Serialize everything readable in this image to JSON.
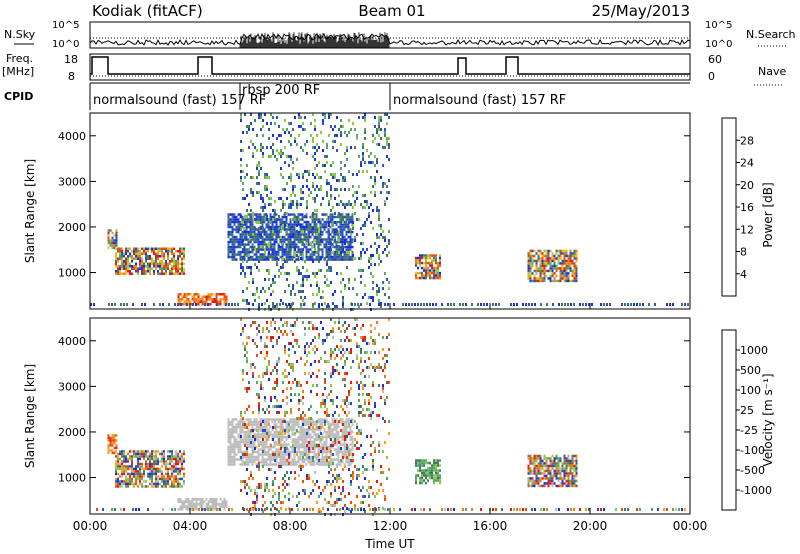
{
  "header": {
    "station": "Kodiak (fitACF)",
    "beam": "Beam 01",
    "date": "25/May/2013"
  },
  "top_panels": {
    "nsky_label": "N.Sky",
    "nsky_ticks": [
      "10^5",
      "10^0"
    ],
    "nsearch_label": "N.Search",
    "nsearch_ticks": [
      "10^5",
      "10^0"
    ],
    "freq_label_1": "Freq.",
    "freq_label_2": "[MHz]",
    "freq_ticks": [
      "18",
      "8"
    ],
    "nave_label": "Nave",
    "nave_ticks": [
      "60",
      "0"
    ],
    "cpid_label": "CPID",
    "cpid_segments": [
      {
        "text": "normalsound (fast) 157 RF"
      },
      {
        "text": "rbsp 200 RF"
      },
      {
        "text": "normalsound (fast) 157 RF"
      }
    ]
  },
  "chart_data": [
    {
      "type": "heatmap",
      "ylabel": "Slant Range [km]",
      "y_ticks": [
        "1000",
        "2000",
        "3000",
        "4000"
      ],
      "ylim": [
        200,
        4500
      ],
      "xlim": [
        "00:00",
        "24:00"
      ],
      "colorbar": {
        "label": "Power [dB]",
        "ticks": [
          "4",
          "8",
          "12",
          "16",
          "20",
          "24",
          "28"
        ],
        "colors": [
          "#1a2fe0",
          "#2d4fbf",
          "#3f7a62",
          "#5aa56a",
          "#8ac84a",
          "#f2c012",
          "#f5a020",
          "#f07a18",
          "#ec4a12",
          "#e81a10"
        ]
      },
      "echo_regions": [
        {
          "t_start": 0.7,
          "t_end": 1.1,
          "r_start": 1550,
          "r_end": 1950,
          "level": "mid"
        },
        {
          "t_start": 1.0,
          "t_end": 3.8,
          "r_start": 1000,
          "r_end": 1550,
          "level": "mixed"
        },
        {
          "t_start": 3.5,
          "t_end": 5.5,
          "r_start": 300,
          "r_end": 550,
          "level": "high"
        },
        {
          "t_start": 5.5,
          "t_end": 10.5,
          "r_start": 1300,
          "r_end": 2300,
          "level": "low"
        },
        {
          "t_start": 6.0,
          "t_end": 12.0,
          "r_start": 200,
          "r_end": 4500,
          "level": "scatter"
        },
        {
          "t_start": 13.0,
          "t_end": 14.0,
          "r_start": 900,
          "r_end": 1400,
          "level": "mid"
        },
        {
          "t_start": 17.5,
          "t_end": 19.5,
          "r_start": 800,
          "r_end": 1500,
          "level": "mixed"
        }
      ]
    },
    {
      "type": "heatmap",
      "ylabel": "Slant Range [km]",
      "y_ticks": [
        "1000",
        "2000",
        "3000",
        "4000"
      ],
      "ylim": [
        200,
        4500
      ],
      "xlabel": "Time UT",
      "x_ticks": [
        "00:00",
        "04:00",
        "08:00",
        "12:00",
        "16:00",
        "20:00",
        "00:00"
      ],
      "xlim": [
        "00:00",
        "24:00"
      ],
      "colorbar": {
        "label": "Velocity [m s⁻¹]",
        "ticks": [
          "1000",
          "500",
          "100",
          "25",
          "-25",
          "-100",
          "-500",
          "-1000"
        ],
        "colors": [
          "#1a2fe0",
          "#2d4fbf",
          "#3f7a62",
          "#5aa56a",
          "#8ac84a",
          "#bdbdbd",
          "#f5a020",
          "#f07a18",
          "#ec4a12",
          "#e81a10"
        ]
      },
      "echo_regions": [
        {
          "t_start": 0.7,
          "t_end": 1.1,
          "r_start": 1550,
          "r_end": 1950,
          "level": "negative"
        },
        {
          "t_start": 1.0,
          "t_end": 3.8,
          "r_start": 800,
          "r_end": 1600,
          "level": "mixed"
        },
        {
          "t_start": 3.5,
          "t_end": 5.5,
          "r_start": 300,
          "r_end": 550,
          "level": "ground"
        },
        {
          "t_start": 5.5,
          "t_end": 10.5,
          "r_start": 1300,
          "r_end": 2300,
          "level": "ground"
        },
        {
          "t_start": 6.0,
          "t_end": 12.0,
          "r_start": 200,
          "r_end": 4500,
          "level": "scatter"
        },
        {
          "t_start": 13.0,
          "t_end": 14.0,
          "r_start": 900,
          "r_end": 1400,
          "level": "positive"
        },
        {
          "t_start": 17.5,
          "t_end": 19.5,
          "r_start": 800,
          "r_end": 1500,
          "level": "mixed"
        }
      ]
    }
  ]
}
